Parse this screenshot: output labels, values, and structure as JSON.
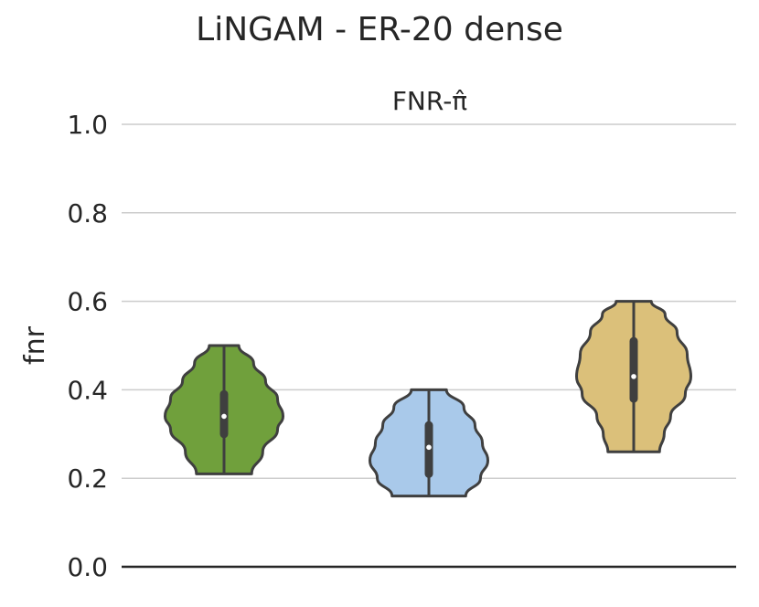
{
  "chart_data": {
    "type": "violin",
    "title": "LiNGAM - ER-20 dense",
    "subtitle": "FNR-π̂",
    "ylabel": "fnr",
    "xlabel": "",
    "ylim": [
      0.0,
      1.0
    ],
    "yticks": [
      "0.0",
      "0.2",
      "0.4",
      "0.6",
      "0.8",
      "1.0"
    ],
    "grid": true,
    "series": [
      {
        "color": "#70a03c",
        "min": 0.21,
        "max": 0.5,
        "q1": 0.3,
        "median": 0.34,
        "q3": 0.39,
        "width_profile": [
          [
            0.21,
            0.3
          ],
          [
            0.26,
            0.42
          ],
          [
            0.31,
            0.58
          ],
          [
            0.34,
            0.64
          ],
          [
            0.38,
            0.58
          ],
          [
            0.42,
            0.45
          ],
          [
            0.46,
            0.32
          ],
          [
            0.5,
            0.16
          ]
        ]
      },
      {
        "color": "#a9c9ea",
        "min": 0.16,
        "max": 0.4,
        "q1": 0.21,
        "median": 0.27,
        "q3": 0.32,
        "width_profile": [
          [
            0.16,
            0.4
          ],
          [
            0.2,
            0.56
          ],
          [
            0.24,
            0.64
          ],
          [
            0.28,
            0.58
          ],
          [
            0.32,
            0.5
          ],
          [
            0.36,
            0.38
          ],
          [
            0.4,
            0.19
          ]
        ]
      },
      {
        "color": "#dbc07a",
        "min": 0.26,
        "max": 0.6,
        "q1": 0.38,
        "median": 0.43,
        "q3": 0.51,
        "width_profile": [
          [
            0.26,
            0.28
          ],
          [
            0.3,
            0.33
          ],
          [
            0.34,
            0.4
          ],
          [
            0.39,
            0.56
          ],
          [
            0.43,
            0.62
          ],
          [
            0.48,
            0.58
          ],
          [
            0.53,
            0.47
          ],
          [
            0.57,
            0.34
          ],
          [
            0.6,
            0.19
          ]
        ]
      }
    ]
  }
}
